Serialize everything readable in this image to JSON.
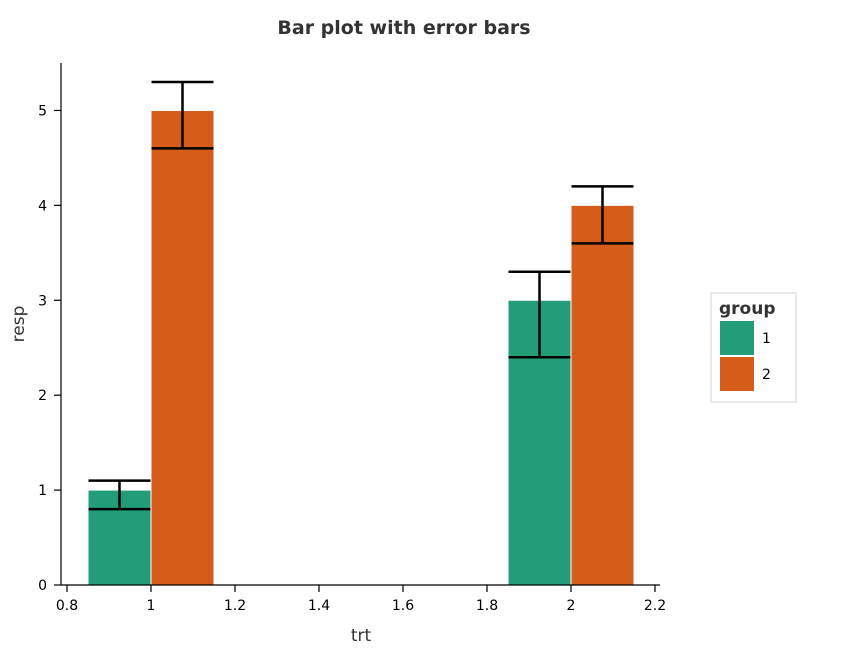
{
  "chart_data": {
    "type": "bar",
    "title": "Bar plot with error bars",
    "xlabel": "trt",
    "ylabel": "resp",
    "xlim": [
      0.8,
      2.2
    ],
    "ylim": [
      0,
      5.5
    ],
    "x_ticks": [
      "0.8",
      "1",
      "1.2",
      "1.4",
      "1.6",
      "1.8",
      "2",
      "2.2"
    ],
    "y_ticks": [
      "0",
      "1",
      "2",
      "3",
      "4",
      "5"
    ],
    "bar_width": 0.15,
    "grid": false,
    "legend": {
      "title": "group",
      "position": "right",
      "entries": [
        "1",
        "2"
      ]
    },
    "series": [
      {
        "name": "1",
        "color": "#229c79",
        "points": [
          {
            "x": 0.925,
            "y": 1,
            "lower": 0.8,
            "upper": 1.1
          },
          {
            "x": 1.925,
            "y": 3,
            "lower": 2.4,
            "upper": 3.3
          }
        ]
      },
      {
        "name": "2",
        "color": "#d65c1b",
        "points": [
          {
            "x": 1.075,
            "y": 5,
            "lower": 4.6,
            "upper": 5.3
          },
          {
            "x": 2.075,
            "y": 4,
            "lower": 3.6,
            "upper": 4.2
          }
        ]
      }
    ]
  }
}
